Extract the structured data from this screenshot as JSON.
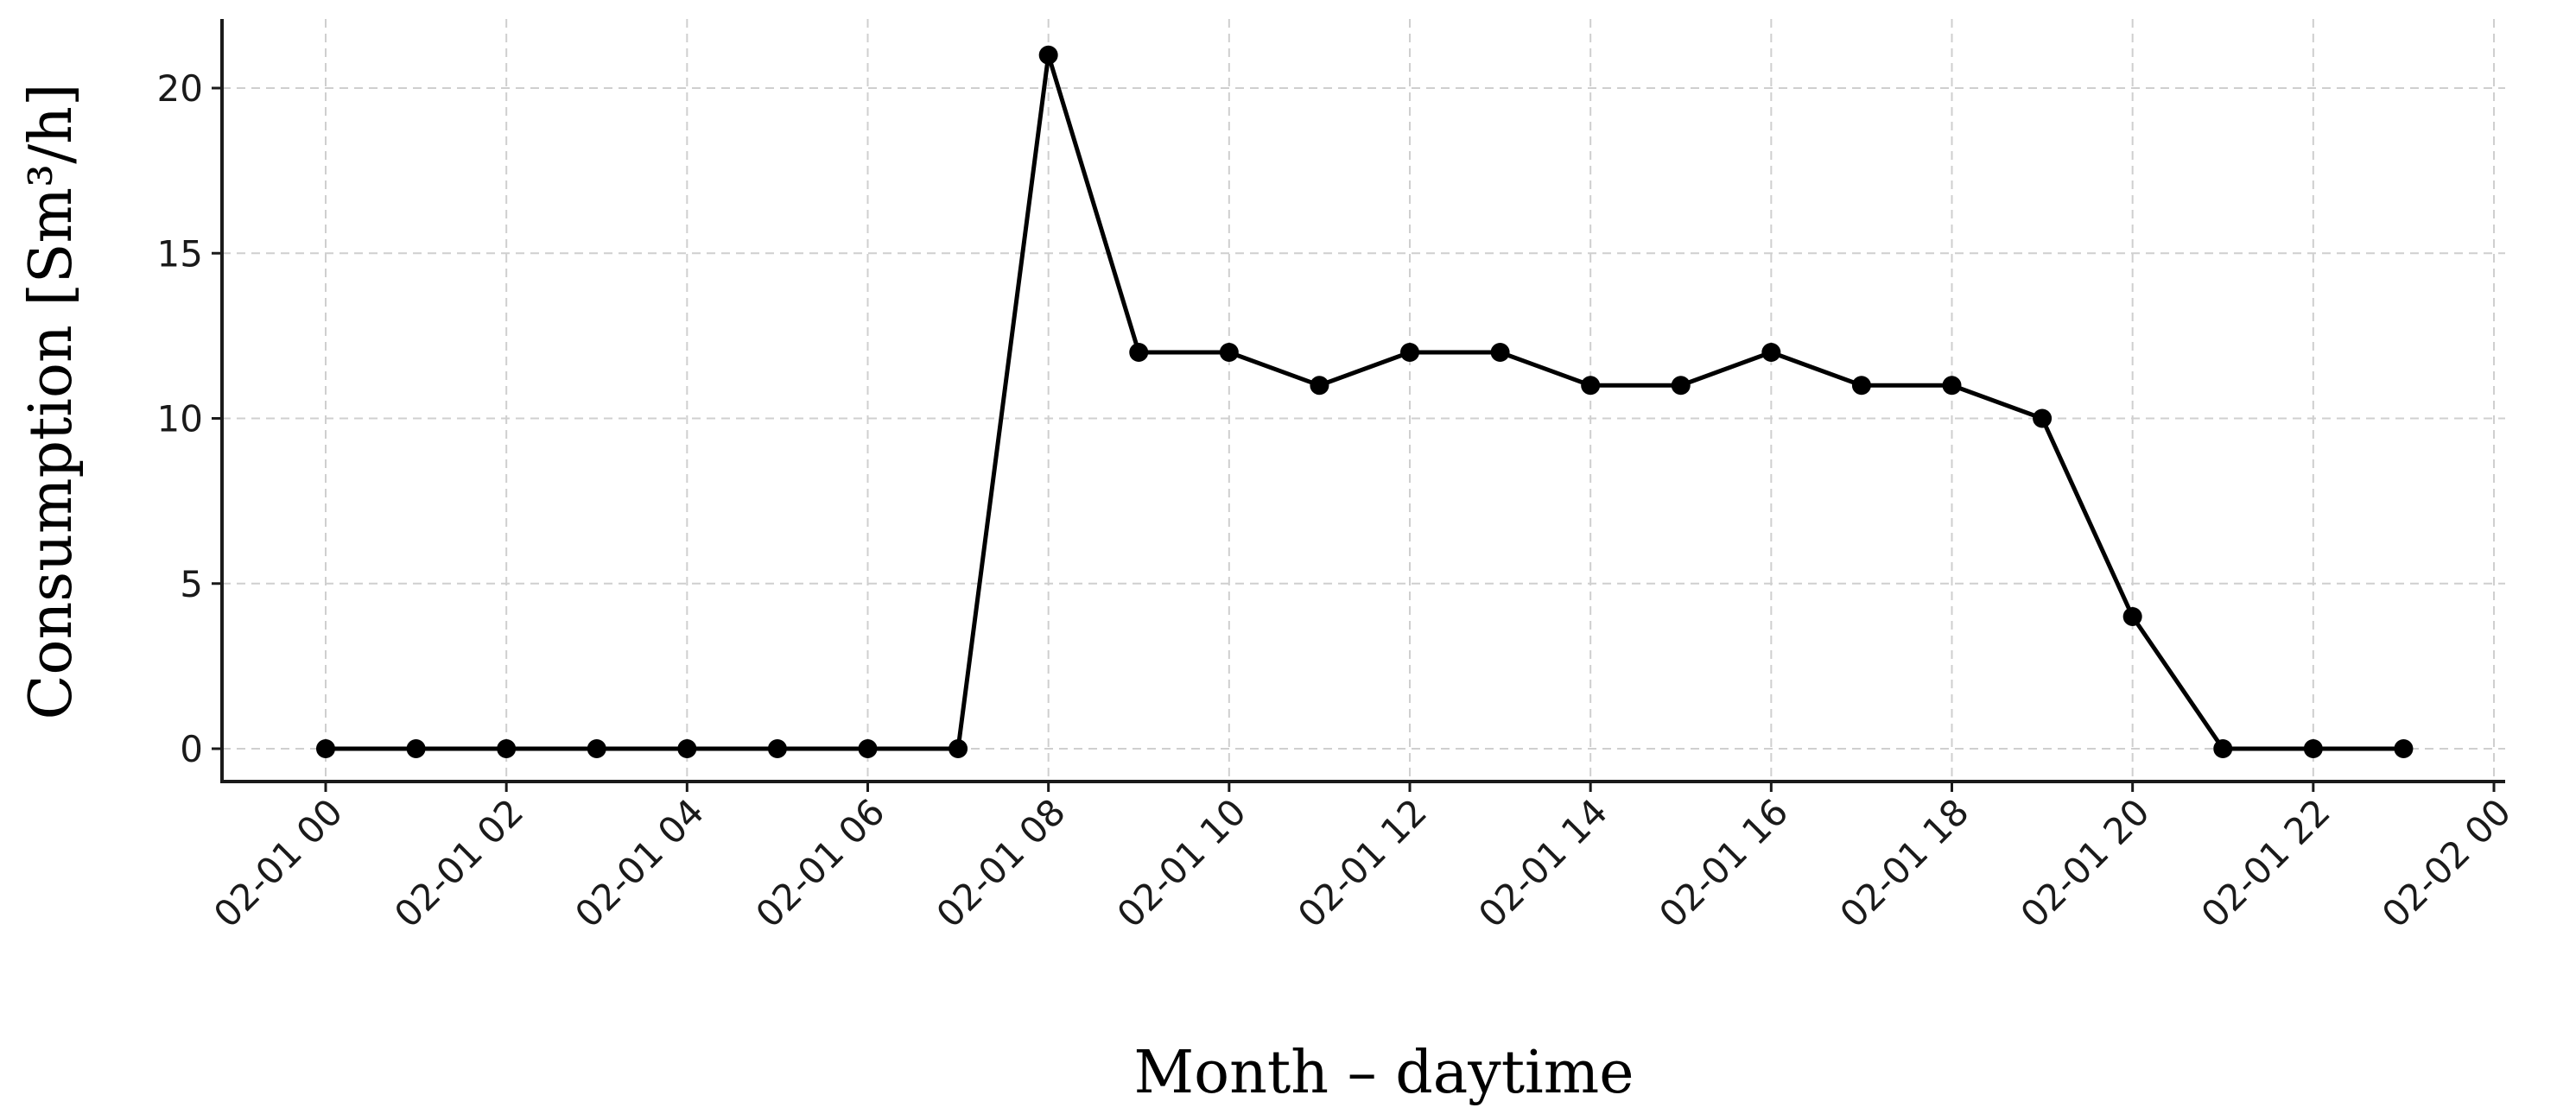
{
  "chart_data": {
    "type": "line",
    "xlabel": "Month – daytime",
    "ylabel": "Consumption [Sm³/h]",
    "x": [
      "02-01 00",
      "02-01 01",
      "02-01 02",
      "02-01 03",
      "02-01 04",
      "02-01 05",
      "02-01 06",
      "02-01 07",
      "02-01 08",
      "02-01 09",
      "02-01 10",
      "02-01 11",
      "02-01 12",
      "02-01 13",
      "02-01 14",
      "02-01 15",
      "02-01 16",
      "02-01 17",
      "02-01 18",
      "02-01 19",
      "02-01 20",
      "02-01 21",
      "02-01 22",
      "02-01 23"
    ],
    "series": [
      {
        "values": [
          0,
          0,
          0,
          0,
          0,
          0,
          0,
          0,
          21,
          12,
          12,
          11,
          12,
          12,
          11,
          11,
          12,
          11,
          11,
          10,
          4,
          0,
          0,
          0
        ],
        "color": "#000000",
        "marker": "circle"
      }
    ],
    "x_ticks": [
      "02-01 00",
      "02-01 02",
      "02-01 04",
      "02-01 06",
      "02-01 08",
      "02-01 10",
      "02-01 12",
      "02-01 14",
      "02-01 16",
      "02-01 18",
      "02-01 20",
      "02-01 22",
      "02-02 00"
    ],
    "y_ticks": [
      0,
      5,
      10,
      15,
      20
    ],
    "ylim": [
      -1,
      22
    ],
    "xlim": [
      "02-01 00",
      "02-02 00"
    ],
    "grid": true,
    "legend": "none"
  }
}
